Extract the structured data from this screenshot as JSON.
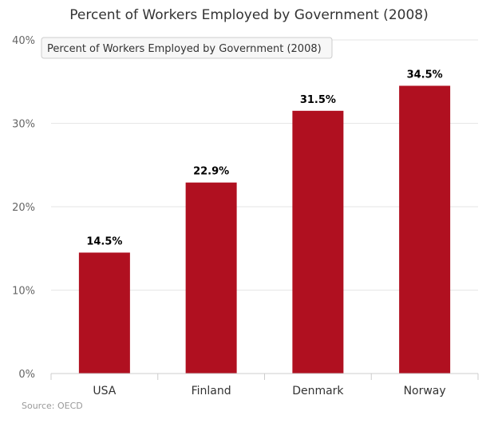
{
  "chart_data": {
    "type": "bar",
    "title": "Percent of Workers Employed by Government (2008)",
    "categories": [
      "USA",
      "Finland",
      "Denmark",
      "Norway"
    ],
    "values": [
      14.5,
      22.9,
      31.5,
      34.5
    ],
    "data_labels": [
      "14.5%",
      "22.9%",
      "31.5%",
      "34.5%"
    ],
    "xlabel": "",
    "ylabel": "",
    "ylim": [
      0,
      40
    ],
    "yticks": [
      0,
      10,
      20,
      30,
      40
    ],
    "ytick_labels": [
      "0%",
      "10%",
      "20%",
      "30%",
      "40%"
    ],
    "grid": true,
    "bar_color": "#b01020",
    "source": "Source: OECD",
    "tooltip": "Percent of Workers Employed by Government (2008)"
  }
}
